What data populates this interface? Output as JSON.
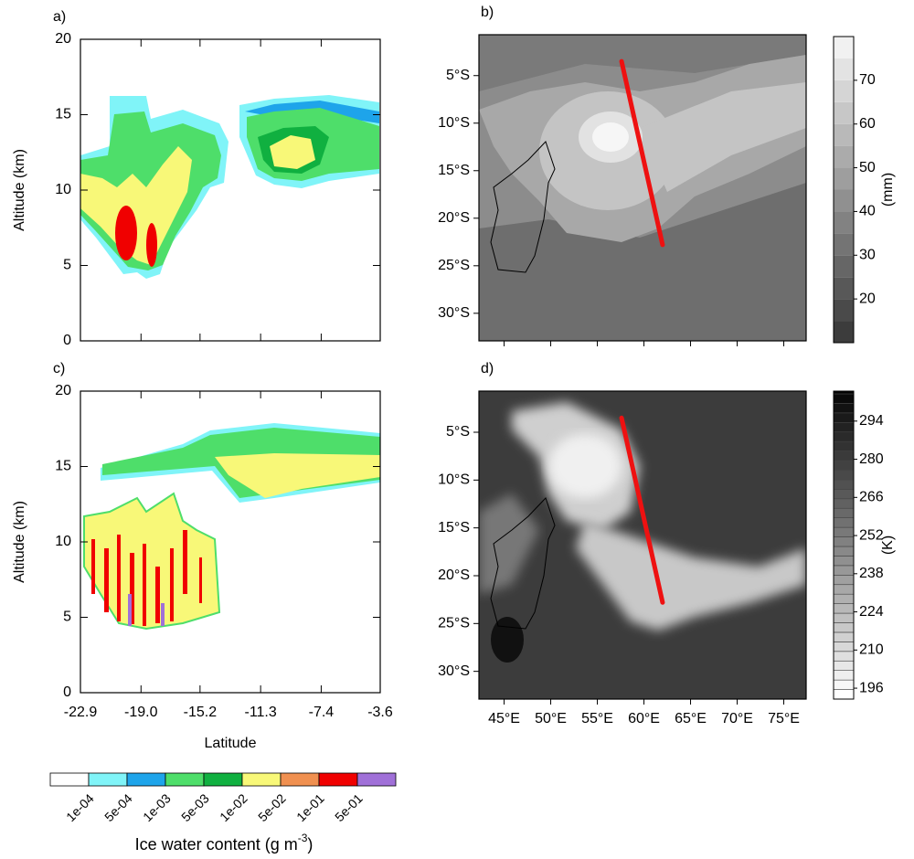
{
  "chart_data": [
    {
      "type": "contour",
      "panel": "a)",
      "ylabel": "Altitude (km)",
      "xlim": [
        -22.9,
        -3.6
      ],
      "ylim": [
        0,
        20
      ],
      "yticks": [
        0,
        5,
        10,
        15,
        20
      ]
    },
    {
      "type": "map",
      "panel": "b)",
      "xlim": [
        42.3,
        77.4
      ],
      "ylim": [
        -32.9,
        -0.7
      ],
      "yticks": [
        {
          "value": -5,
          "label": "5°S"
        },
        {
          "value": -10,
          "label": "10°S"
        },
        {
          "value": -15,
          "label": "15°S"
        },
        {
          "value": -20,
          "label": "20°S"
        },
        {
          "value": -25,
          "label": "25°S"
        },
        {
          "value": -30,
          "label": "30°S"
        }
      ],
      "track": {
        "lon": [
          57.6,
          62.0
        ],
        "lat": [
          -3.5,
          -22.8
        ],
        "color": "#ee1111"
      },
      "colorbar": {
        "lim": [
          10,
          80
        ],
        "step": 5,
        "ticks": [
          20,
          30,
          40,
          50,
          60,
          70
        ],
        "label": "(mm)",
        "reverse": false
      }
    },
    {
      "type": "contour",
      "panel": "c)",
      "ylabel": "Altitude (km)",
      "xlabel": "Latitude",
      "xlim": [
        -22.9,
        -3.6
      ],
      "ylim": [
        0,
        20
      ],
      "yticks": [
        0,
        5,
        10,
        15,
        20
      ],
      "xticks": [
        -22.9,
        {
          "value": -19.0,
          "label": "-19.0"
        },
        -15.2,
        -11.3,
        -7.4,
        -3.6
      ]
    },
    {
      "type": "map",
      "panel": "d)",
      "xlim": [
        42.3,
        77.4
      ],
      "ylim": [
        -32.9,
        -0.7
      ],
      "yticks": [
        {
          "value": -5,
          "label": "5°S"
        },
        {
          "value": -10,
          "label": "10°S"
        },
        {
          "value": -15,
          "label": "15°S"
        },
        {
          "value": -20,
          "label": "20°S"
        },
        {
          "value": -25,
          "label": "25°S"
        },
        {
          "value": -30,
          "label": "30°S"
        }
      ],
      "xticks": [
        {
          "value": 45,
          "label": "45°E"
        },
        {
          "value": 50,
          "label": "50°E"
        },
        {
          "value": 55,
          "label": "55°E"
        },
        {
          "value": 60,
          "label": "60°E"
        },
        {
          "value": 65,
          "label": "65°E"
        },
        {
          "value": 70,
          "label": "70°E"
        },
        {
          "value": 75,
          "label": "75°E"
        }
      ],
      "track": {
        "lon": [
          57.6,
          62.0
        ],
        "lat": [
          -3.5,
          -22.8
        ],
        "color": "#ee1111"
      },
      "colorbar": {
        "lim": [
          192,
          305
        ],
        "step": 3.5,
        "ticks": [
          196,
          210,
          224,
          238,
          252,
          266,
          280,
          294
        ],
        "label": "(K)",
        "reverse": true
      }
    }
  ],
  "legend": {
    "title": "Ice water content (g m",
    "title_sup": "-3",
    "title_end": ")",
    "colors": [
      "#ffffff",
      "#80f4f8",
      "#1ea4ea",
      "#4ede6a",
      "#10b040",
      "#f8f878",
      "#f09050",
      "#f00000",
      "#a070d8"
    ],
    "labels": [
      "1e-04",
      "5e-04",
      "1e-03",
      "5e-03",
      "1e-02",
      "5e-02",
      "1e-01",
      "5e-01"
    ]
  }
}
